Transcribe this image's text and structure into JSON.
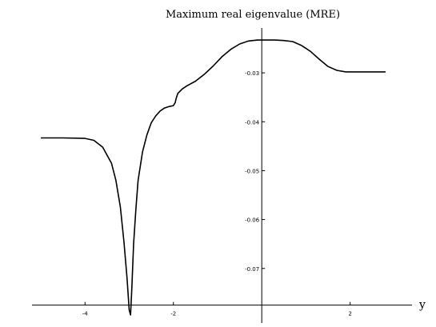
{
  "chart_data": {
    "type": "line",
    "title": "Maximum real eigenvalue (MRE)",
    "xlabel": "y",
    "ylabel": "",
    "xlim": [
      -5.2,
      3.4
    ],
    "ylim": [
      -0.0805,
      -0.0205
    ],
    "x_axis_crossing_y": -0.0775,
    "y_axis_crossing_x": 0,
    "x_ticks": [
      {
        "value": -4,
        "label": "-4"
      },
      {
        "value": -2,
        "label": "-2"
      },
      {
        "value": 2,
        "label": "2"
      }
    ],
    "y_ticks": [
      {
        "value": -0.03,
        "label": "-0.03"
      },
      {
        "value": -0.04,
        "label": "-0.04"
      },
      {
        "value": -0.05,
        "label": "-0.05"
      },
      {
        "value": -0.06,
        "label": "-0.06"
      },
      {
        "value": -0.07,
        "label": "-0.07"
      }
    ],
    "grid": false,
    "series": [
      {
        "points": [
          [
            -5.0,
            -0.0433
          ],
          [
            -4.5,
            -0.0433
          ],
          [
            -4.0,
            -0.0434
          ],
          [
            -3.8,
            -0.0438
          ],
          [
            -3.6,
            -0.0452
          ],
          [
            -3.4,
            -0.0485
          ],
          [
            -3.3,
            -0.052
          ],
          [
            -3.2,
            -0.0575
          ],
          [
            -3.12,
            -0.0645
          ],
          [
            -3.05,
            -0.072
          ],
          [
            -3.0,
            -0.0785
          ],
          [
            -2.97,
            -0.0795
          ],
          [
            -2.94,
            -0.074
          ],
          [
            -2.9,
            -0.065
          ],
          [
            -2.85,
            -0.058
          ],
          [
            -2.8,
            -0.052
          ],
          [
            -2.7,
            -0.0462
          ],
          [
            -2.6,
            -0.0427
          ],
          [
            -2.5,
            -0.0402
          ],
          [
            -2.4,
            -0.0388
          ],
          [
            -2.3,
            -0.0378
          ],
          [
            -2.2,
            -0.0372
          ],
          [
            -2.1,
            -0.0369
          ],
          [
            -2.0,
            -0.0367
          ],
          [
            -1.96,
            -0.0361
          ],
          [
            -1.94,
            -0.0353
          ],
          [
            -1.9,
            -0.0342
          ],
          [
            -1.8,
            -0.0333
          ],
          [
            -1.7,
            -0.0327
          ],
          [
            -1.5,
            -0.0317
          ],
          [
            -1.3,
            -0.0303
          ],
          [
            -1.1,
            -0.0286
          ],
          [
            -0.9,
            -0.0267
          ],
          [
            -0.7,
            -0.0252
          ],
          [
            -0.5,
            -0.0241
          ],
          [
            -0.3,
            -0.0235
          ],
          [
            -0.1,
            -0.0233
          ],
          [
            0.1,
            -0.0233
          ],
          [
            0.3,
            -0.0233
          ],
          [
            0.5,
            -0.0234
          ],
          [
            0.7,
            -0.0236
          ],
          [
            0.9,
            -0.0244
          ],
          [
            1.1,
            -0.0256
          ],
          [
            1.3,
            -0.0272
          ],
          [
            1.5,
            -0.0287
          ],
          [
            1.7,
            -0.0295
          ],
          [
            1.9,
            -0.0298
          ],
          [
            2.1,
            -0.0298
          ],
          [
            2.3,
            -0.0298
          ],
          [
            2.5,
            -0.0298
          ],
          [
            2.8,
            -0.0298
          ]
        ]
      }
    ]
  }
}
